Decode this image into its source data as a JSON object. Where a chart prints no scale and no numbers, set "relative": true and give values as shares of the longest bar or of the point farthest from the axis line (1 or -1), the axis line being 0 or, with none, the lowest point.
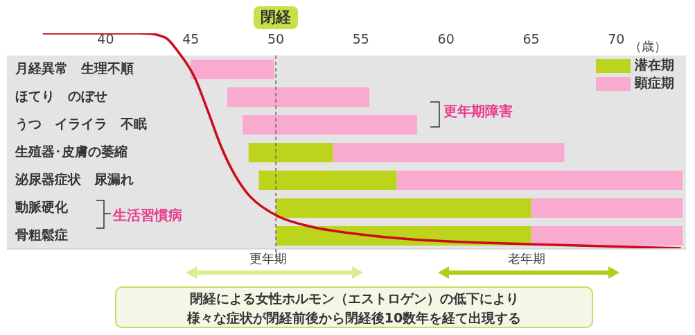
{
  "chart_data": [
    {
      "type": "bar",
      "orientation": "horizontal",
      "xlabel": "（歳）",
      "categories": [
        "月経異常　生理不順",
        "ほてり　のぼせ",
        "うつ　イライラ　不眠",
        "生殖器･皮膚の萎縮",
        "泌尿器症状　尿漏れ",
        "動脈硬化",
        "骨粗鬆症"
      ],
      "series": [
        {
          "name": "潜在期",
          "color": "#bcd41c",
          "base": [
            null,
            null,
            null,
            48.4,
            49,
            50,
            50
          ],
          "values": [
            null,
            null,
            null,
            4.95,
            8.1,
            15,
            15
          ]
        },
        {
          "name": "顕症期",
          "color": "#f9aacf",
          "base": [
            45,
            47.15,
            48.05,
            53.35,
            57.1,
            65,
            65
          ],
          "values": [
            4.9,
            8.35,
            10.25,
            13.6,
            16.8,
            8.9,
            8.9
          ]
        }
      ],
      "xlim": [
        34.2,
        74.1
      ],
      "xticks": [
        40,
        45,
        50,
        55,
        60,
        65,
        70
      ],
      "legend": "top right",
      "ref_lines": [
        {
          "axis": "x",
          "value": 50,
          "label": "閉経",
          "color": "#666666",
          "line_style": "dashed"
        }
      ],
      "annotations": [
        "更年期障害",
        "生活習慣病",
        "更年期",
        "老年期",
        "閉経による女性ホルモン（エストロゲン）の低下により",
        "様々な症状が閉経前後から閉経後10数年を経て出現する"
      ]
    },
    {
      "type": "line",
      "relative": true,
      "tick_labels": false,
      "xlim": [
        34.2,
        74.1
      ],
      "series": [
        {
          "color": "#cc0a1e",
          "x": [
            36.3,
            41.9,
            43.5,
            44.3,
            45.2,
            46,
            46.8,
            47.6,
            48.5,
            50.1,
            52.1,
            54.9,
            58.2,
            62.2,
            66.3,
            73.8
          ],
          "values": [
            1,
            1,
            0.98,
            0.91,
            0.8,
            0.64,
            0.47,
            0.34,
            0.24,
            0.15,
            0.1,
            0.065,
            0.04,
            0.026,
            0.016,
            0
          ]
        }
      ]
    }
  ]
}
